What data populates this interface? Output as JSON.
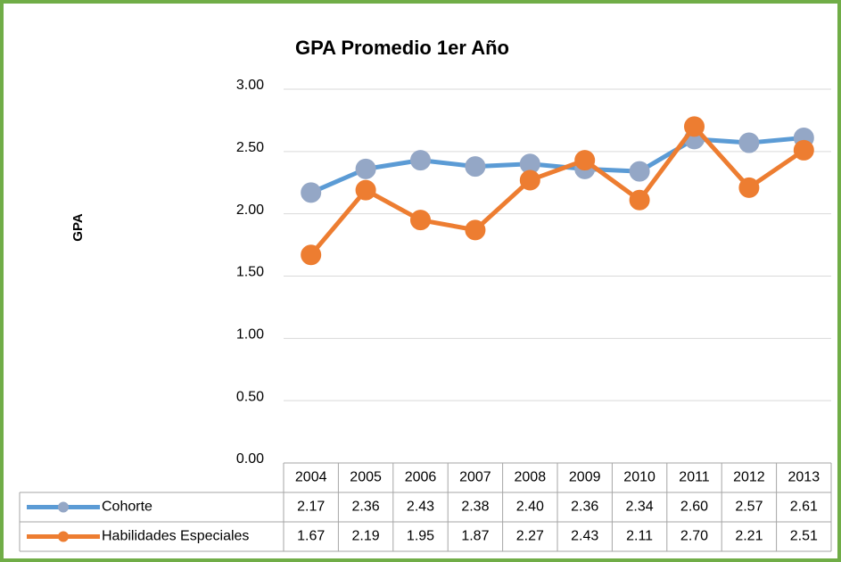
{
  "chart_data": {
    "type": "line",
    "title": "GPA Promedio 1er Año",
    "y_label": "GPA",
    "categories": [
      "2004",
      "2005",
      "2006",
      "2007",
      "2008",
      "2009",
      "2010",
      "2011",
      "2012",
      "2013"
    ],
    "series": [
      {
        "name": "Cohorte",
        "color": "#5b9bd5",
        "marker_color": "#94a7c6",
        "values": [
          2.17,
          2.36,
          2.43,
          2.38,
          2.4,
          2.36,
          2.34,
          2.6,
          2.57,
          2.61
        ],
        "value_labels": [
          "2.17",
          "2.36",
          "2.43",
          "2.38",
          "2.40",
          "2.36",
          "2.34",
          "2.60",
          "2.57",
          "2.61"
        ]
      },
      {
        "name": "Habilidades Especiales",
        "color": "#ed7d31",
        "marker_color": "#ed7d31",
        "values": [
          1.67,
          2.19,
          1.95,
          1.87,
          2.27,
          2.43,
          2.11,
          2.7,
          2.21,
          2.51
        ],
        "value_labels": [
          "1.67",
          "2.19",
          "1.95",
          "1.87",
          "2.27",
          "2.43",
          "2.11",
          "2.70",
          "2.21",
          "2.51"
        ]
      }
    ],
    "ylim": [
      0,
      3
    ],
    "yticks": [
      {
        "value": 0,
        "label": "0.00"
      },
      {
        "value": 0.5,
        "label": "0.50"
      },
      {
        "value": 1,
        "label": "1.00"
      },
      {
        "value": 1.5,
        "label": "1.50"
      },
      {
        "value": 2,
        "label": "2.00"
      },
      {
        "value": 2.5,
        "label": "2.50"
      },
      {
        "value": 3,
        "label": "3.00"
      }
    ],
    "grid": true,
    "data_table": true
  }
}
